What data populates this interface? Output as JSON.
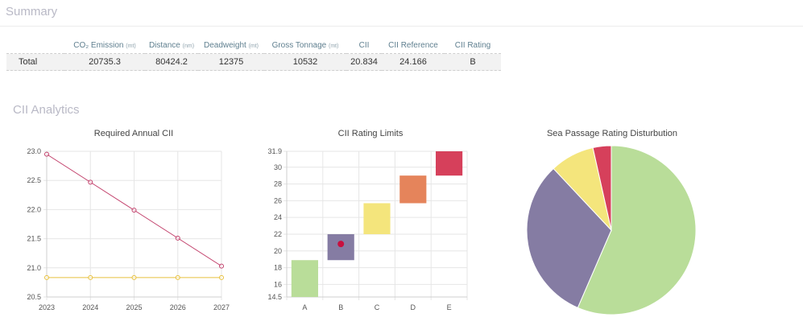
{
  "summary": {
    "title": "Summary",
    "columns": [
      {
        "label": "CO₂ Emission",
        "unit": "(mt)"
      },
      {
        "label": "Distance",
        "unit": "(nm)"
      },
      {
        "label": "Deadweight",
        "unit": "(mt)"
      },
      {
        "label": "Gross Tonnage",
        "unit": "(mt)"
      },
      {
        "label": "CII",
        "unit": ""
      },
      {
        "label": "CII Reference",
        "unit": ""
      },
      {
        "label": "CII Rating",
        "unit": ""
      }
    ],
    "row": {
      "label": "Total",
      "values": [
        "20735.3",
        "80424.2",
        "12375",
        "10532",
        "20.834",
        "24.166",
        "B"
      ]
    }
  },
  "analytics": {
    "title": "CII Analytics"
  },
  "chart_data": [
    {
      "type": "line",
      "title": "Required Annual CII",
      "x": [
        "2023",
        "2024",
        "2025",
        "2026",
        "2027"
      ],
      "ylim": [
        20.5,
        23.0
      ],
      "yticks": [
        "20.5",
        "21.0",
        "21.5",
        "22.0",
        "22.5",
        "23.0"
      ],
      "grid": true,
      "series": [
        {
          "values": [
            22.95,
            22.47,
            21.99,
            21.51,
            21.03
          ],
          "color": "#c2406b"
        },
        {
          "values": [
            20.834,
            20.834,
            20.834,
            20.834,
            20.834
          ],
          "color": "#e8c13e"
        }
      ]
    },
    {
      "type": "bar",
      "title": "CII Rating Limits",
      "categories": [
        "A",
        "B",
        "C",
        "D",
        "E"
      ],
      "ylim": [
        14.5,
        31.9
      ],
      "yticks": [
        "14.5",
        "16",
        "18",
        "20",
        "22",
        "24",
        "26",
        "28",
        "30",
        "31.9"
      ],
      "grid": true,
      "ranges": [
        {
          "category": "A",
          "low": 14.5,
          "high": 18.9,
          "color": "#b9dd99"
        },
        {
          "category": "B",
          "low": 18.9,
          "high": 22.0,
          "color": "#857ca3"
        },
        {
          "category": "C",
          "low": 22.0,
          "high": 25.7,
          "color": "#f4e57c"
        },
        {
          "category": "D",
          "low": 25.7,
          "high": 29.0,
          "color": "#e5845b"
        },
        {
          "category": "E",
          "low": 29.0,
          "high": 31.9,
          "color": "#d6405b"
        }
      ],
      "marker": {
        "category": "B",
        "value": 20.834,
        "color": "#c8103f"
      }
    },
    {
      "type": "pie",
      "title": "Sea Passage Rating Disturbution",
      "slices": [
        {
          "value": 56.5,
          "color": "#b9dd99"
        },
        {
          "value": 31.5,
          "color": "#857ca3"
        },
        {
          "value": 8.5,
          "color": "#f4e57c"
        },
        {
          "value": 3.5,
          "color": "#d6405b"
        }
      ]
    }
  ]
}
